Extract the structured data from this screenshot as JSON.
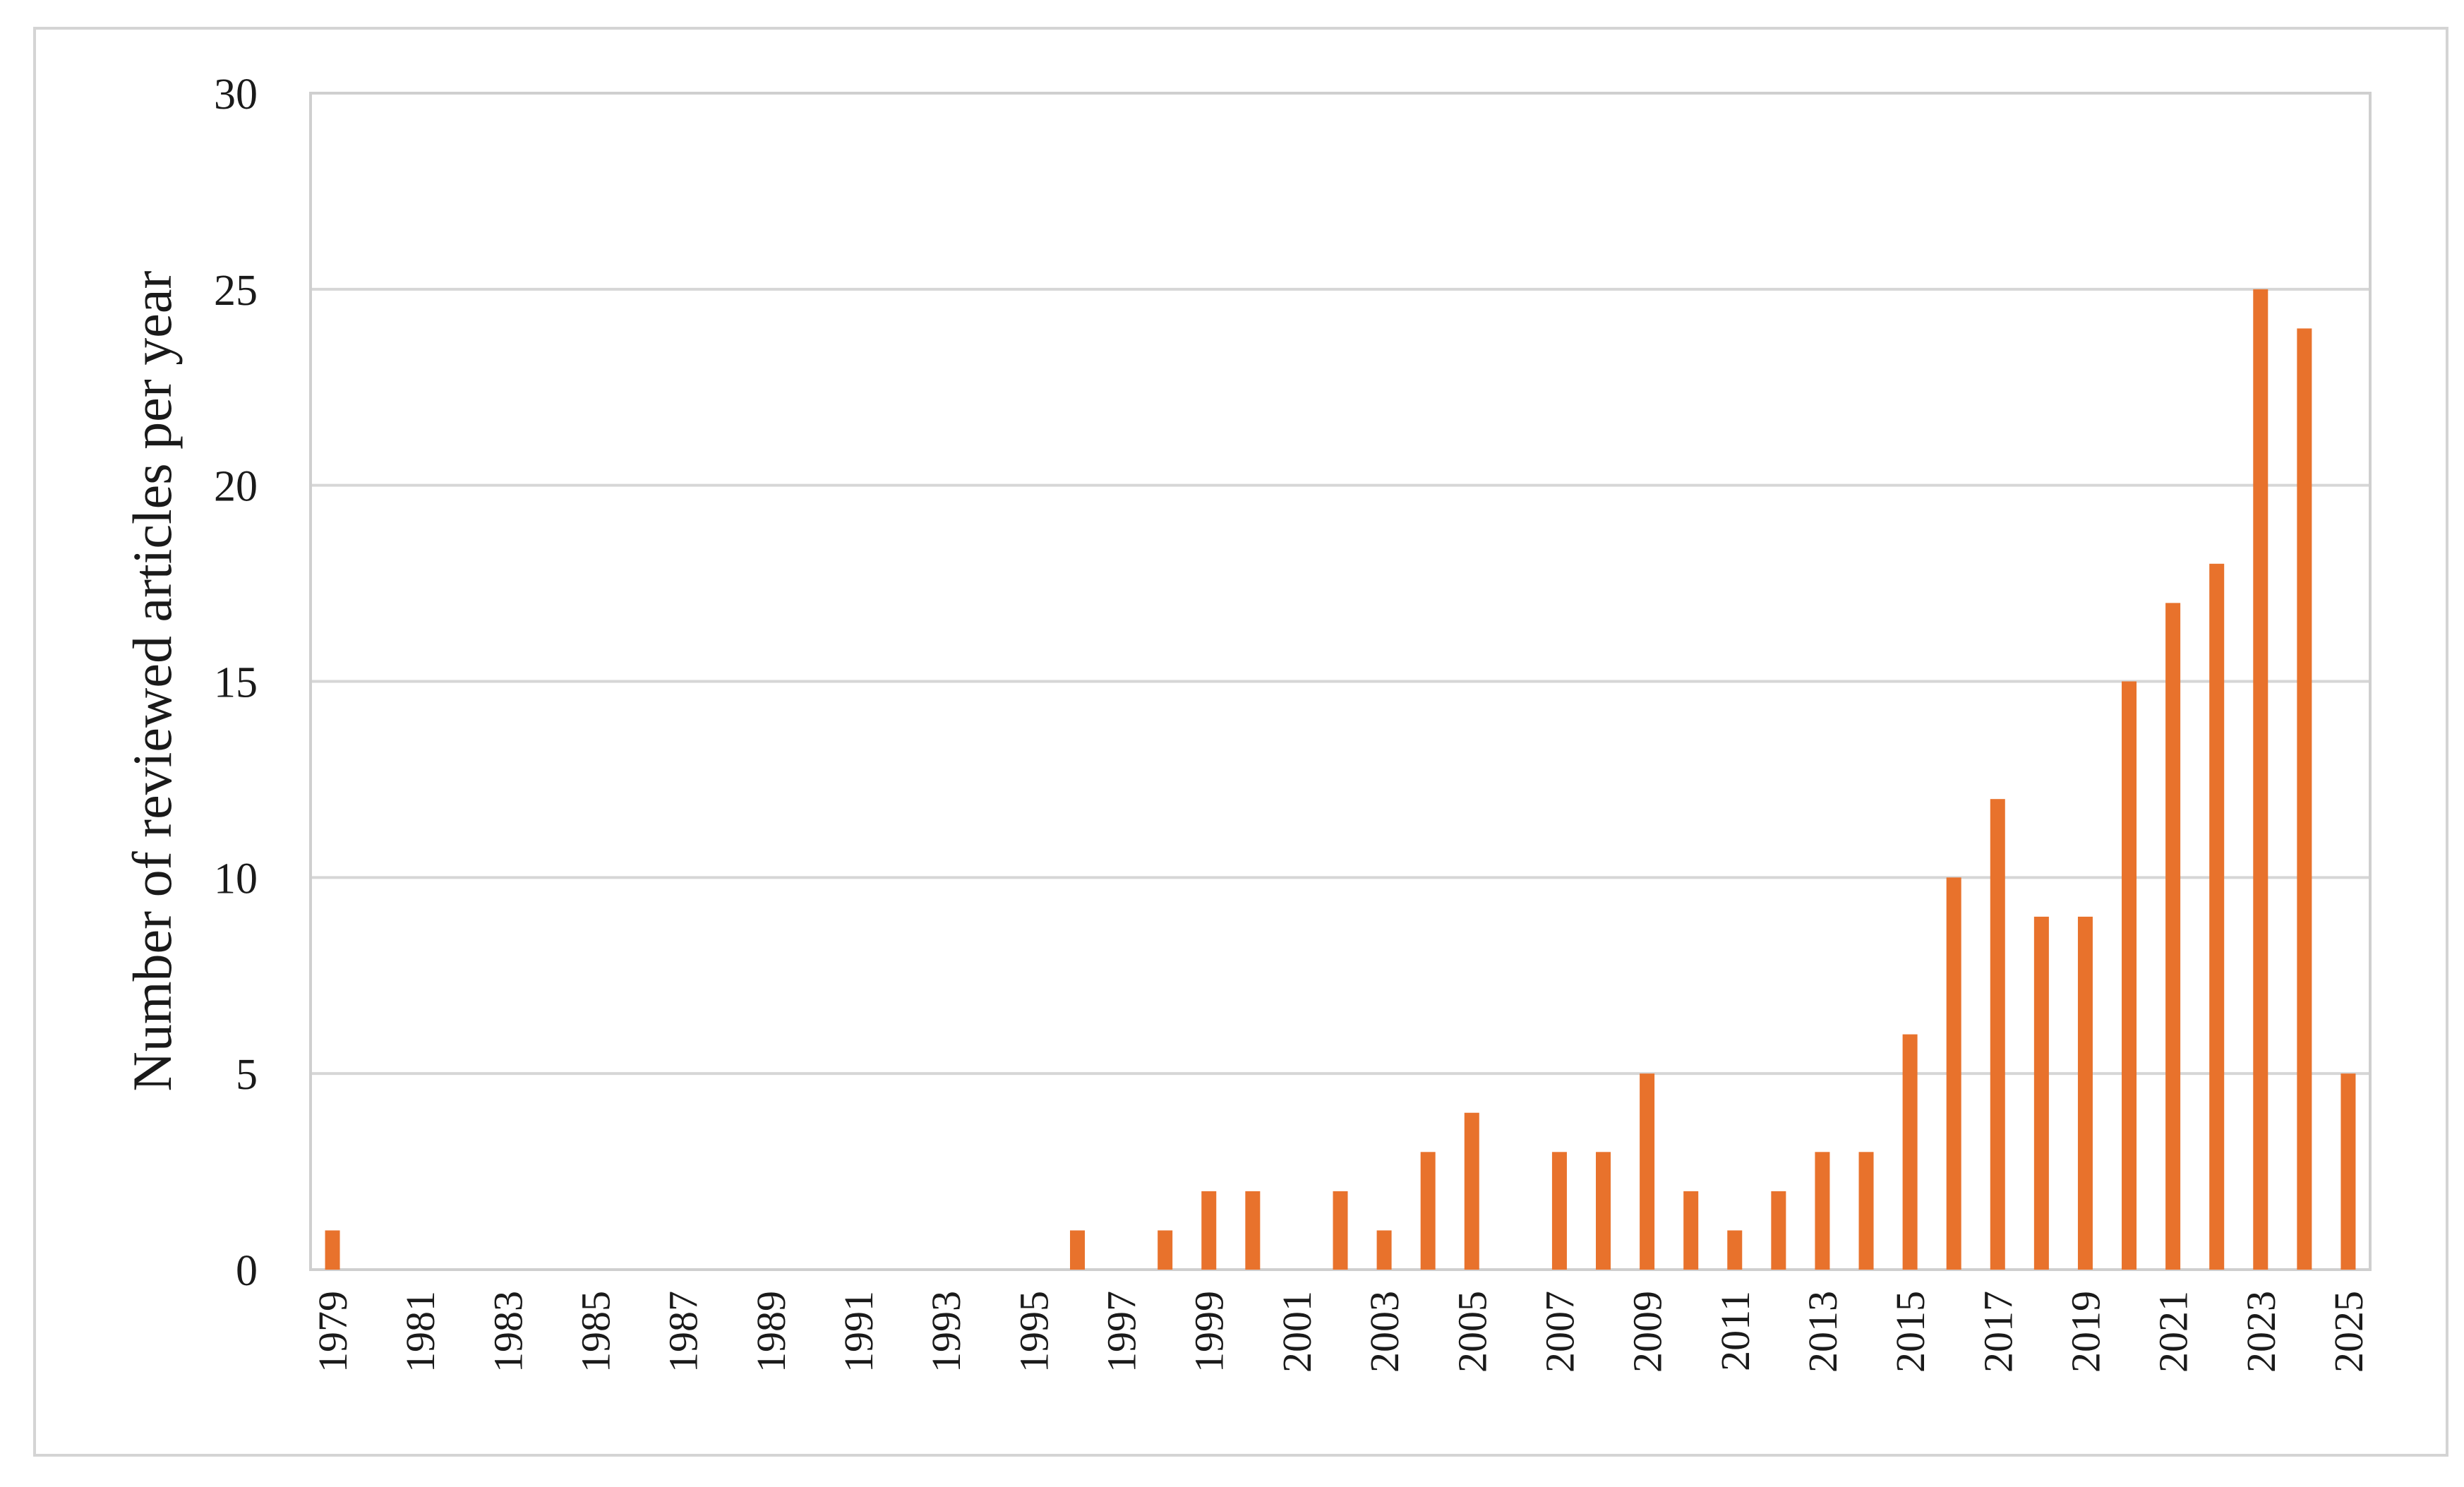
{
  "chart_data": {
    "type": "bar",
    "title": "",
    "xlabel": "",
    "ylabel": "Number of reviewed articles per year",
    "ylim": [
      0,
      30
    ],
    "yticks": [
      0,
      5,
      10,
      15,
      20,
      25,
      30
    ],
    "grid": "horizontal",
    "legend": "none",
    "bar_color": "#e8722c",
    "categories": [
      "1979",
      "1980",
      "1981",
      "1982",
      "1983",
      "1984",
      "1985",
      "1986",
      "1987",
      "1988",
      "1989",
      "1990",
      "1991",
      "1992",
      "1993",
      "1994",
      "1995",
      "1996",
      "1997",
      "1998",
      "1999",
      "2000",
      "2001",
      "2002",
      "2003",
      "2004",
      "2005",
      "2006",
      "2007",
      "2008",
      "2009",
      "2010",
      "2011",
      "2012",
      "2013",
      "2014",
      "2015",
      "2016",
      "2017",
      "2018",
      "2019",
      "2020",
      "2021",
      "2022",
      "2023",
      "2024",
      "2025"
    ],
    "values": [
      1,
      0,
      0,
      0,
      0,
      0,
      0,
      0,
      0,
      0,
      0,
      0,
      0,
      0,
      0,
      0,
      0,
      1,
      0,
      1,
      2,
      2,
      0,
      2,
      1,
      3,
      4,
      0,
      3,
      3,
      5,
      2,
      1,
      2,
      3,
      3,
      6,
      10,
      12,
      9,
      9,
      15,
      17,
      18,
      25,
      24,
      5
    ],
    "xtick_labels": [
      "1979",
      "1981",
      "1983",
      "1985",
      "1987",
      "1989",
      "1991",
      "1993",
      "1995",
      "1997",
      "1999",
      "2001",
      "2003",
      "2005",
      "2007",
      "2009",
      "2011",
      "2013",
      "2015",
      "2017",
      "2019",
      "2021",
      "2023",
      "2025"
    ]
  }
}
